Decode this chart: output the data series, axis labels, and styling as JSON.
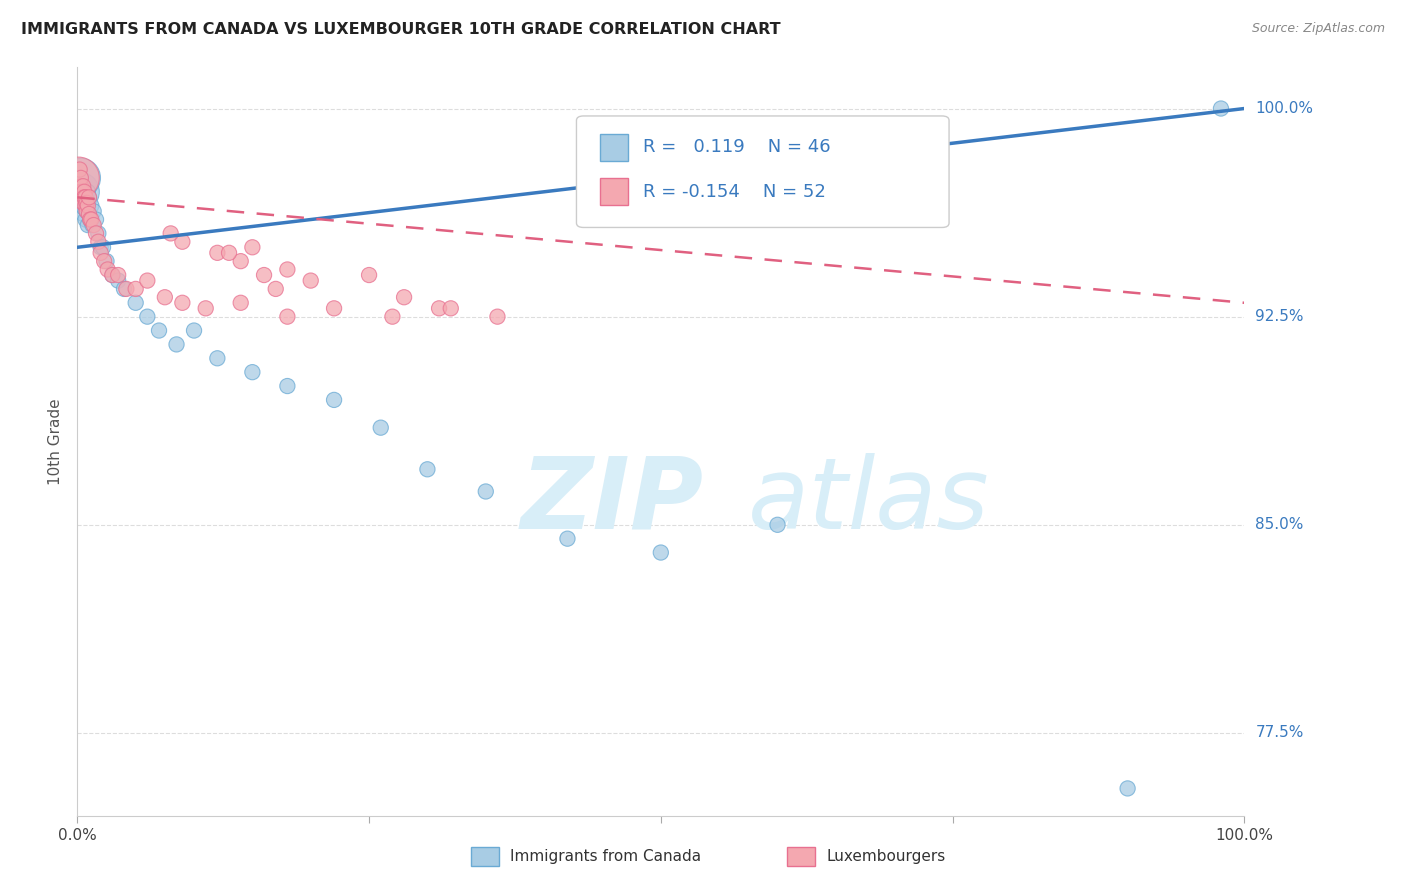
{
  "title": "IMMIGRANTS FROM CANADA VS LUXEMBOURGER 10TH GRADE CORRELATION CHART",
  "source": "Source: ZipAtlas.com",
  "ylabel": "10th Grade",
  "ytick_labels": [
    "77.5%",
    "85.0%",
    "92.5%",
    "100.0%"
  ],
  "ytick_values": [
    0.775,
    0.85,
    0.925,
    1.0
  ],
  "ylim_min": 0.745,
  "ylim_max": 1.015,
  "xlim_min": 0.0,
  "xlim_max": 1.0,
  "legend_blue_r": "R =   0.119",
  "legend_blue_n": "N = 46",
  "legend_pink_r": "R = -0.154",
  "legend_pink_n": "N = 52",
  "legend_blue_label": "Immigrants from Canada",
  "legend_pink_label": "Luxembourgers",
  "blue_color": "#a8cce4",
  "pink_color": "#f4a8b0",
  "blue_edge_color": "#6aaad4",
  "pink_edge_color": "#e87090",
  "blue_line_color": "#3a7abf",
  "pink_line_color": "#e06080",
  "text_color": "#3a7abf",
  "watermark_color": "#d8eef8",
  "grid_color": "#dddddd",
  "blue_scatter_x": [
    0.002,
    0.003,
    0.003,
    0.004,
    0.004,
    0.005,
    0.005,
    0.006,
    0.006,
    0.007,
    0.007,
    0.008,
    0.008,
    0.009,
    0.009,
    0.01,
    0.01,
    0.011,
    0.012,
    0.013,
    0.014,
    0.016,
    0.018,
    0.02,
    0.022,
    0.025,
    0.03,
    0.035,
    0.04,
    0.05,
    0.06,
    0.07,
    0.085,
    0.1,
    0.12,
    0.15,
    0.18,
    0.22,
    0.26,
    0.3,
    0.35,
    0.42,
    0.5,
    0.6,
    0.9,
    0.98
  ],
  "blue_scatter_y": [
    0.97,
    0.975,
    0.968,
    0.972,
    0.965,
    0.968,
    0.962,
    0.97,
    0.964,
    0.968,
    0.96,
    0.965,
    0.963,
    0.97,
    0.958,
    0.968,
    0.962,
    0.96,
    0.965,
    0.958,
    0.963,
    0.96,
    0.955,
    0.95,
    0.95,
    0.945,
    0.94,
    0.938,
    0.935,
    0.93,
    0.925,
    0.92,
    0.915,
    0.92,
    0.91,
    0.905,
    0.9,
    0.895,
    0.885,
    0.87,
    0.862,
    0.845,
    0.84,
    0.85,
    0.755,
    1.0
  ],
  "pink_scatter_x": [
    0.001,
    0.002,
    0.003,
    0.003,
    0.004,
    0.004,
    0.005,
    0.005,
    0.006,
    0.006,
    0.007,
    0.007,
    0.008,
    0.008,
    0.009,
    0.01,
    0.01,
    0.011,
    0.012,
    0.014,
    0.016,
    0.018,
    0.02,
    0.023,
    0.026,
    0.03,
    0.035,
    0.042,
    0.05,
    0.06,
    0.075,
    0.09,
    0.11,
    0.14,
    0.18,
    0.22,
    0.27,
    0.31,
    0.36,
    0.25,
    0.15,
    0.12,
    0.2,
    0.28,
    0.32,
    0.18,
    0.14,
    0.16,
    0.13,
    0.17,
    0.09,
    0.08
  ],
  "pink_scatter_y": [
    0.975,
    0.978,
    0.972,
    0.975,
    0.97,
    0.968,
    0.972,
    0.966,
    0.97,
    0.968,
    0.965,
    0.968,
    0.963,
    0.966,
    0.965,
    0.968,
    0.962,
    0.96,
    0.96,
    0.958,
    0.955,
    0.952,
    0.948,
    0.945,
    0.942,
    0.94,
    0.94,
    0.935,
    0.935,
    0.938,
    0.932,
    0.93,
    0.928,
    0.93,
    0.925,
    0.928,
    0.925,
    0.928,
    0.925,
    0.94,
    0.95,
    0.948,
    0.938,
    0.932,
    0.928,
    0.942,
    0.945,
    0.94,
    0.948,
    0.935,
    0.952,
    0.955
  ],
  "blue_marker_size": 120,
  "pink_marker_size": 120,
  "blue_large_indices": [
    0,
    1
  ],
  "pink_large_indices": [
    0
  ],
  "blue_large_size": 800,
  "pink_large_size": 900,
  "blue_trendline_x": [
    0.0,
    1.0
  ],
  "blue_trendline_y_start": 0.95,
  "blue_trendline_y_end": 1.0,
  "pink_trendline_y_start": 0.968,
  "pink_trendline_y_end": 0.93
}
